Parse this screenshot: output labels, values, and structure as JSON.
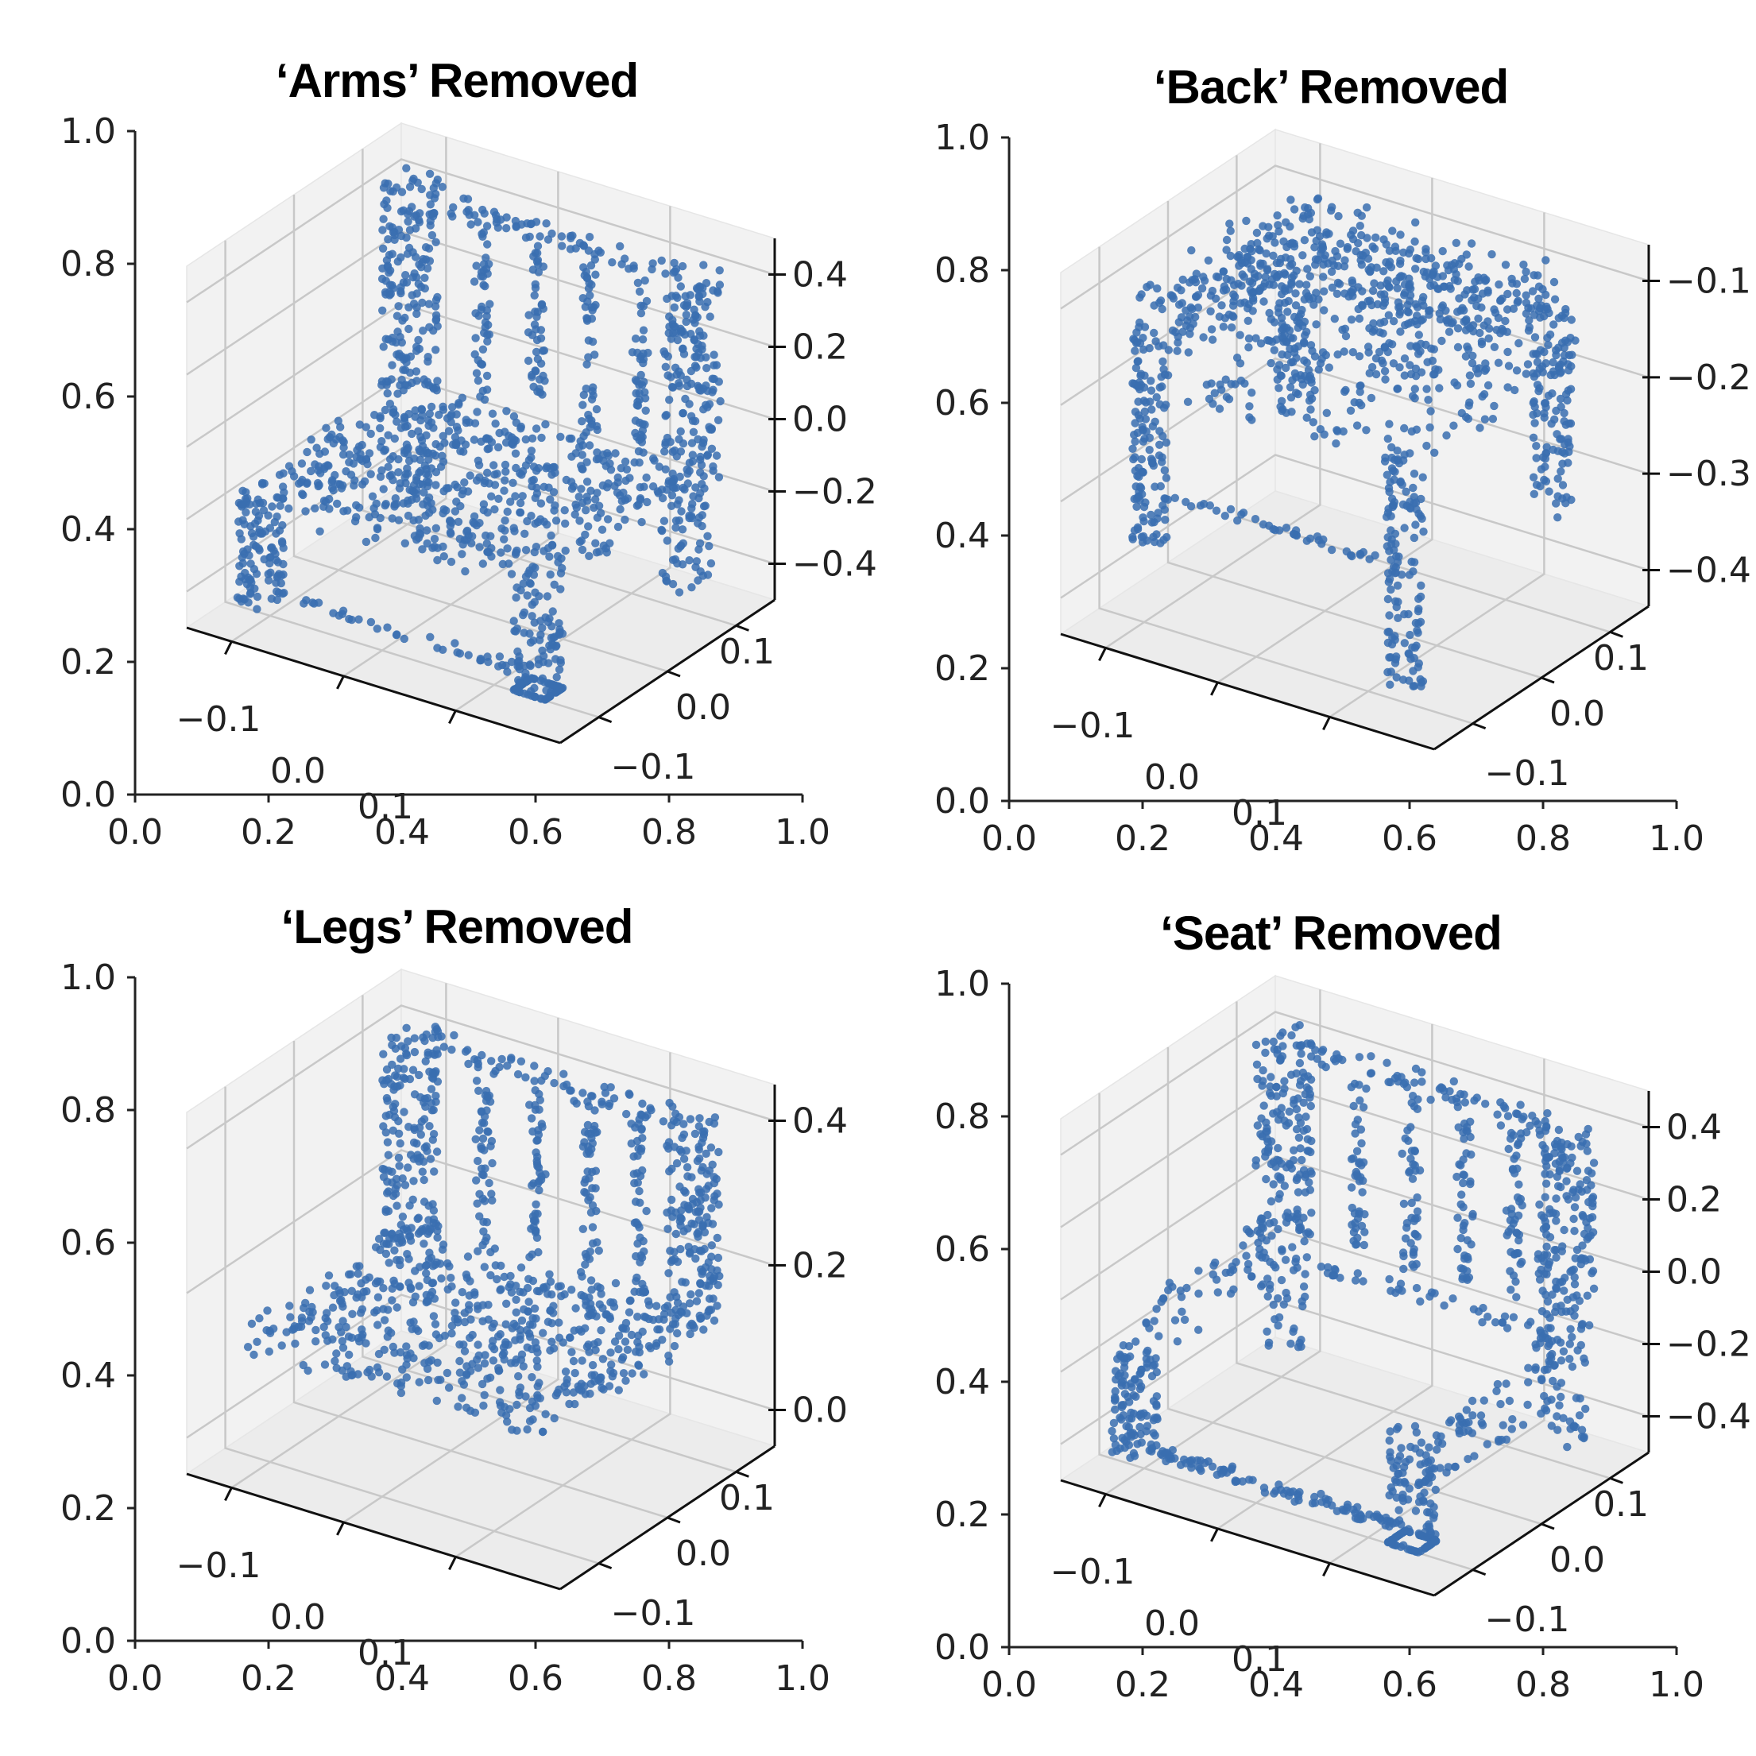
{
  "figure": {
    "panels": [
      {
        "id": "arms",
        "title": "‘Arms’ Removed",
        "ax2d": {
          "x_ticks": [
            "0.0",
            "0.2",
            "0.4",
            "0.6",
            "0.8",
            "1.0"
          ],
          "y_ticks": [
            "0.0",
            "0.2",
            "0.4",
            "0.6",
            "0.8",
            "1.0"
          ]
        },
        "ax3d": {
          "x_ticks": [
            "−0.1",
            "0.0",
            "0.1"
          ],
          "y_ticks": [
            "−0.1",
            "0.0",
            "0.1"
          ],
          "z_ticks": [
            "0.4",
            "0.2",
            "0.0",
            "−0.2",
            "−0.4"
          ],
          "z_range": [
            -0.4,
            0.4
          ]
        }
      },
      {
        "id": "back",
        "title": "‘Back’ Removed",
        "ax2d": {
          "x_ticks": [
            "0.0",
            "0.2",
            "0.4",
            "0.6",
            "0.8",
            "1.0"
          ],
          "y_ticks": [
            "0.0",
            "0.2",
            "0.4",
            "0.6",
            "0.8",
            "1.0"
          ]
        },
        "ax3d": {
          "x_ticks": [
            "−0.1",
            "0.0",
            "0.1"
          ],
          "y_ticks": [
            "−0.1",
            "0.0",
            "0.1"
          ],
          "z_ticks": [
            "−0.1",
            "−0.2",
            "−0.3",
            "−0.4"
          ],
          "z_range": [
            -0.4,
            -0.1
          ]
        }
      },
      {
        "id": "legs",
        "title": "‘Legs’ Removed",
        "ax2d": {
          "x_ticks": [
            "0.0",
            "0.2",
            "0.4",
            "0.6",
            "0.8",
            "1.0"
          ],
          "y_ticks": [
            "0.0",
            "0.2",
            "0.4",
            "0.6",
            "0.8",
            "1.0"
          ]
        },
        "ax3d": {
          "x_ticks": [
            "−0.1",
            "0.0",
            "0.1"
          ],
          "y_ticks": [
            "−0.1",
            "0.0",
            "0.1"
          ],
          "z_ticks": [
            "0.4",
            "0.2",
            "0.0"
          ],
          "z_range": [
            -0.1,
            0.45
          ]
        }
      },
      {
        "id": "seat",
        "title": "‘Seat’ Removed",
        "ax2d": {
          "x_ticks": [
            "0.0",
            "0.2",
            "0.4",
            "0.6",
            "0.8",
            "1.0"
          ],
          "y_ticks": [
            "0.0",
            "0.2",
            "0.4",
            "0.6",
            "0.8",
            "1.0"
          ]
        },
        "ax3d": {
          "x_ticks": [
            "−0.1",
            "0.0",
            "0.1"
          ],
          "y_ticks": [
            "−0.1",
            "0.0",
            "0.1"
          ],
          "z_ticks": [
            "0.4",
            "0.2",
            "0.0",
            "−0.2",
            "−0.4"
          ],
          "z_range": [
            -0.4,
            0.4
          ]
        }
      }
    ]
  },
  "chart_data": [
    {
      "type": "scatter",
      "title": "‘Arms’ Removed",
      "subtype": "3d-point-cloud",
      "parts_shown": [
        "back",
        "seat",
        "legs"
      ],
      "parts_removed": [
        "arms"
      ],
      "xlim": [
        -0.15,
        0.15
      ],
      "ylim": [
        -0.15,
        0.15
      ],
      "zlim": [
        -0.4,
        0.4
      ],
      "point_color": "#3a6fb0"
    },
    {
      "type": "scatter",
      "title": "‘Back’ Removed",
      "subtype": "3d-point-cloud",
      "parts_shown": [
        "seat",
        "legs"
      ],
      "parts_removed": [
        "back"
      ],
      "xlim": [
        -0.15,
        0.15
      ],
      "ylim": [
        -0.15,
        0.15
      ],
      "zlim": [
        -0.4,
        -0.1
      ],
      "point_color": "#3a6fb0"
    },
    {
      "type": "scatter",
      "title": "‘Legs’ Removed",
      "subtype": "3d-point-cloud",
      "parts_shown": [
        "back",
        "seat"
      ],
      "parts_removed": [
        "legs"
      ],
      "xlim": [
        -0.15,
        0.15
      ],
      "ylim": [
        -0.15,
        0.15
      ],
      "zlim": [
        -0.1,
        0.45
      ],
      "point_color": "#3a6fb0"
    },
    {
      "type": "scatter",
      "title": "‘Seat’ Removed",
      "subtype": "3d-point-cloud",
      "parts_shown": [
        "back",
        "legs",
        "rails"
      ],
      "parts_removed": [
        "seat"
      ],
      "xlim": [
        -0.15,
        0.15
      ],
      "ylim": [
        -0.15,
        0.15
      ],
      "zlim": [
        -0.4,
        0.4
      ],
      "point_color": "#3a6fb0"
    }
  ]
}
